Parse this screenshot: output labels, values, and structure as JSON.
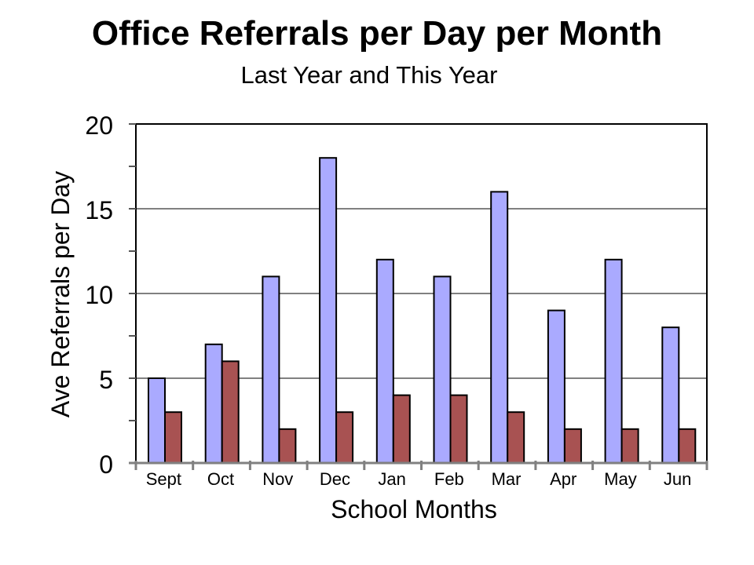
{
  "chart_data": {
    "type": "bar",
    "title": "Office Referrals per Day per Month",
    "subtitle": "Last Year and This Year",
    "xlabel": "School Months",
    "ylabel": "Ave Referrals per Day",
    "categories": [
      "Sept",
      "Oct",
      "Nov",
      "Dec",
      "Jan",
      "Feb",
      "Mar",
      "Apr",
      "May",
      "Jun"
    ],
    "series": [
      {
        "values": [
          5,
          7,
          11,
          18,
          12,
          11,
          16,
          9,
          12,
          8
        ],
        "color": "#aaaaff"
      },
      {
        "values": [
          3,
          6,
          2,
          3,
          4,
          4,
          3,
          2,
          2,
          2
        ],
        "color": "#a85252"
      }
    ],
    "ylim": [
      0,
      20
    ],
    "yticks": [
      0,
      5,
      10,
      15,
      20
    ],
    "grid": true,
    "legend": "none"
  }
}
